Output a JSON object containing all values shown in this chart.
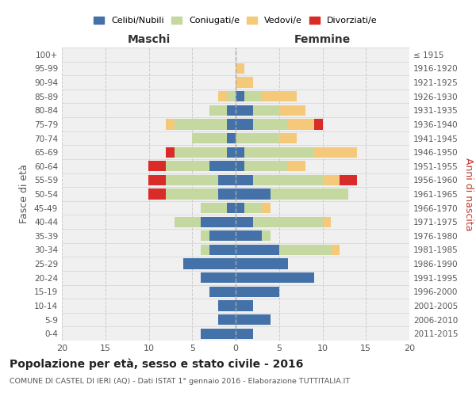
{
  "age_groups": [
    "0-4",
    "5-9",
    "10-14",
    "15-19",
    "20-24",
    "25-29",
    "30-34",
    "35-39",
    "40-44",
    "45-49",
    "50-54",
    "55-59",
    "60-64",
    "65-69",
    "70-74",
    "75-79",
    "80-84",
    "85-89",
    "90-94",
    "95-99",
    "100+"
  ],
  "birth_years": [
    "2011-2015",
    "2006-2010",
    "2001-2005",
    "1996-2000",
    "1991-1995",
    "1986-1990",
    "1981-1985",
    "1976-1980",
    "1971-1975",
    "1966-1970",
    "1961-1965",
    "1956-1960",
    "1951-1955",
    "1946-1950",
    "1941-1945",
    "1936-1940",
    "1931-1935",
    "1926-1930",
    "1921-1925",
    "1916-1920",
    "≤ 1915"
  ],
  "colors": {
    "celibi": "#4472a8",
    "coniugati": "#c5d8a0",
    "vedovi": "#f5c97a",
    "divorziati": "#d92b27"
  },
  "maschi": {
    "celibi": [
      4,
      2,
      2,
      3,
      4,
      6,
      3,
      3,
      4,
      1,
      2,
      2,
      3,
      1,
      1,
      1,
      1,
      0,
      0,
      0,
      0
    ],
    "coniugati": [
      0,
      0,
      0,
      0,
      0,
      0,
      1,
      1,
      3,
      3,
      6,
      6,
      5,
      6,
      4,
      6,
      2,
      1,
      0,
      0,
      0
    ],
    "vedovi": [
      0,
      0,
      0,
      0,
      0,
      0,
      0,
      0,
      0,
      0,
      0,
      0,
      0,
      0,
      0,
      1,
      0,
      1,
      0,
      0,
      0
    ],
    "divorziati": [
      0,
      0,
      0,
      0,
      0,
      0,
      0,
      0,
      0,
      0,
      2,
      2,
      2,
      1,
      0,
      0,
      0,
      0,
      0,
      0,
      0
    ]
  },
  "femmine": {
    "celibi": [
      2,
      4,
      2,
      5,
      9,
      6,
      5,
      3,
      2,
      1,
      4,
      2,
      1,
      1,
      0,
      2,
      2,
      1,
      0,
      0,
      0
    ],
    "coniugati": [
      0,
      0,
      0,
      0,
      0,
      0,
      6,
      1,
      8,
      2,
      9,
      8,
      5,
      8,
      5,
      4,
      3,
      2,
      0,
      0,
      0
    ],
    "vedovi": [
      0,
      0,
      0,
      0,
      0,
      0,
      1,
      0,
      1,
      1,
      0,
      2,
      2,
      5,
      2,
      3,
      3,
      4,
      2,
      1,
      0
    ],
    "divorziati": [
      0,
      0,
      0,
      0,
      0,
      0,
      0,
      0,
      0,
      0,
      0,
      2,
      0,
      0,
      0,
      1,
      0,
      0,
      0,
      0,
      0
    ]
  },
  "xlim": 20,
  "title": "Popolazione per età, sesso e stato civile - 2016",
  "subtitle": "COMUNE DI CASTEL DI IERI (AQ) - Dati ISTAT 1° gennaio 2016 - Elaborazione TUTTITALIA.IT",
  "ylabel_left": "Fasce di età",
  "ylabel_right": "Anni di nascita",
  "xlabel_left": "Maschi",
  "xlabel_right": "Femmine",
  "legend_labels": [
    "Celibi/Nubili",
    "Coniugati/e",
    "Vedovi/e",
    "Divorziati/e"
  ],
  "bg_color": "#f0f0f0",
  "grid_color": "#cccccc"
}
